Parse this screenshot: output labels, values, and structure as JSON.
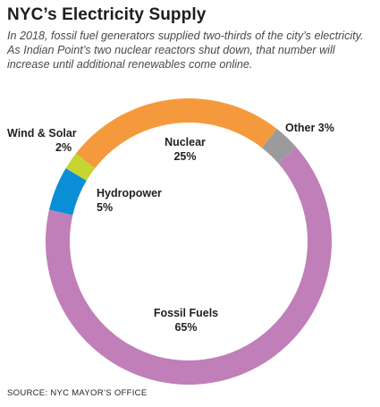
{
  "title": "NYC’s Electricity Supply",
  "subtitle": "In 2018, fossil fuel generators supplied two-thirds of the city’s electricity. As Indian Point’s two nuclear reactors shut down, that number will increase until additional renewables come online.",
  "source": "SOURCE: NYC MAYOR’S OFFICE",
  "chart_data": {
    "type": "pie",
    "donut": true,
    "slices": [
      {
        "label": "Other",
        "value": 3,
        "display": "Other 3%",
        "color": "#9b9b9b"
      },
      {
        "label": "Fossil Fuels",
        "value": 65,
        "display": "65%",
        "color": "#c07fb8"
      },
      {
        "label": "Hydropower",
        "value": 5,
        "display": "5%",
        "color": "#0a8fd6"
      },
      {
        "label": "Wind & Solar",
        "value": 2,
        "display": "2%",
        "color": "#c6d530"
      },
      {
        "label": "Nuclear",
        "value": 25,
        "display": "25%",
        "color": "#f59a3c"
      }
    ]
  }
}
